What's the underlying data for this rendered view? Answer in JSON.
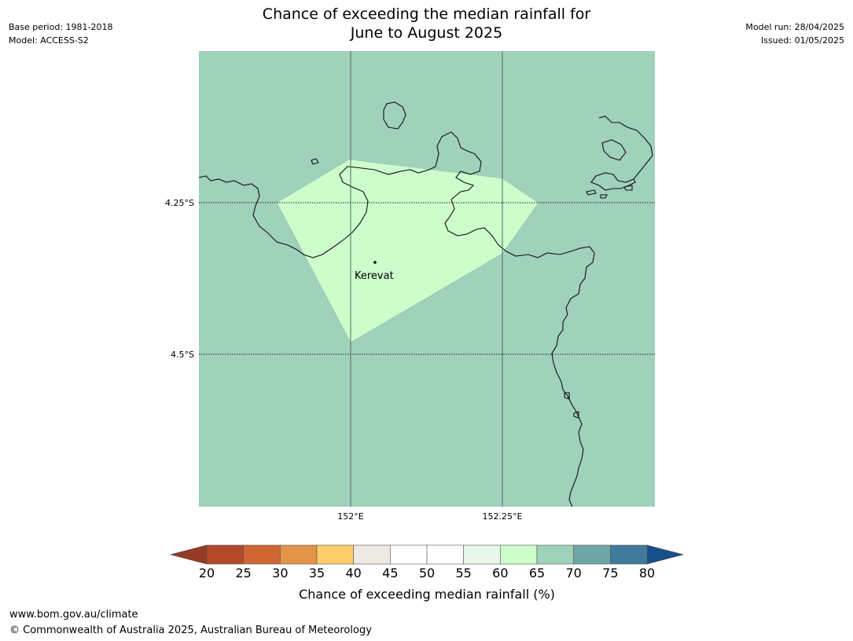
{
  "header": {
    "title_line1": "Chance of exceeding the median rainfall for",
    "title_line2": "June to August 2025",
    "base_period": "Base period: 1981-2018",
    "model": "Model: ACCESS-S2",
    "model_run": "Model run: 28/04/2025",
    "issued": "Issued: 01/05/2025"
  },
  "map": {
    "background_color": "#9fd1bb",
    "region_color": "#ccfdcb",
    "place": {
      "name": "Kerevat"
    },
    "lat_ticks": [
      "4.25°S",
      "4.5°S"
    ],
    "lon_ticks": [
      "152°E",
      "152.25°E"
    ]
  },
  "colorbar": {
    "label": "Chance of exceeding median rainfall (%)",
    "ticks": [
      "20",
      "25",
      "30",
      "35",
      "40",
      "45",
      "50",
      "55",
      "60",
      "65",
      "70",
      "75",
      "80"
    ],
    "under_color": "#963a24",
    "over_color": "#16508a",
    "colors": [
      "#b24a27",
      "#cf6633",
      "#e39447",
      "#fdcd6a",
      "#ede9e5",
      "#ffffff",
      "#ffffff",
      "#e9f7ea",
      "#ccfdcb",
      "#9fd1bb",
      "#6ea6a8",
      "#407b9b"
    ]
  },
  "footer": {
    "url": "www.bom.gov.au/climate",
    "copyright": "© Commonwealth of Australia 2025, Australian Bureau of Meteorology"
  }
}
